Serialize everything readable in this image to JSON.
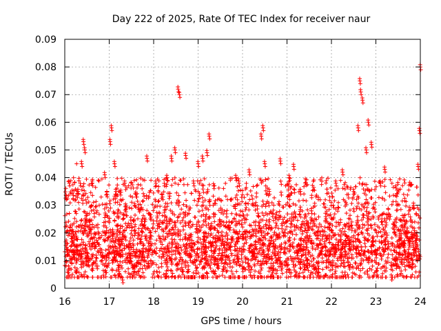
{
  "chart_data": {
    "type": "scatter",
    "title": "Day 222 of 2025, Rate Of TEC Index for receiver naur",
    "xlabel": "GPS time / hours",
    "ylabel": "ROTI / TECUs",
    "xlim": [
      16,
      24
    ],
    "ylim": [
      0,
      0.09
    ],
    "xticks": [
      16,
      17,
      18,
      19,
      20,
      21,
      22,
      23,
      24
    ],
    "xtick_labels": [
      "16",
      "17",
      "18",
      "19",
      "20",
      "21",
      "22",
      "23",
      "24"
    ],
    "yticks": [
      0,
      0.01,
      0.02,
      0.03,
      0.04,
      0.05,
      0.06,
      0.07,
      0.08,
      0.09
    ],
    "ytick_labels": [
      "0",
      "0.01",
      "0.02",
      "0.03",
      "0.04",
      "0.05",
      "0.06",
      "0.07",
      "0.08",
      "0.09"
    ],
    "grid": true,
    "marker": "plus",
    "color": "#ff0000",
    "series": [
      {
        "name": "ROTI",
        "x": [
          16.05,
          16.1,
          16.15,
          16.2,
          16.3,
          16.38,
          16.42,
          16.45,
          16.5,
          16.55,
          16.62,
          16.7,
          16.8,
          16.9,
          16.95,
          17.02,
          17.05,
          17.08,
          17.12,
          17.15,
          17.22,
          17.3,
          17.35,
          17.45,
          17.6,
          17.75,
          17.85,
          17.92,
          18.05,
          18.2,
          18.3,
          18.4,
          18.48,
          18.55,
          18.58,
          18.65,
          18.72,
          18.82,
          18.9,
          19.0,
          19.1,
          19.2,
          19.25,
          19.28,
          19.35,
          19.45,
          19.55,
          19.7,
          19.85,
          19.92,
          20.0,
          20.15,
          20.3,
          20.42,
          20.46,
          20.5,
          20.6,
          20.75,
          20.85,
          20.95,
          21.05,
          21.15,
          21.3,
          21.42,
          21.55,
          21.7,
          21.85,
          21.95,
          22.1,
          22.25,
          22.4,
          22.5,
          22.6,
          22.64,
          22.66,
          22.7,
          22.78,
          22.83,
          22.9,
          23.0,
          23.1,
          23.2,
          23.28,
          23.35,
          23.45,
          23.6,
          23.75,
          23.85,
          23.95,
          23.98,
          24.0
        ],
        "y": [
          0.014,
          0.038,
          0.018,
          0.012,
          0.035,
          0.045,
          0.053,
          0.05,
          0.011,
          0.016,
          0.038,
          0.009,
          0.013,
          0.041,
          0.034,
          0.053,
          0.058,
          0.018,
          0.045,
          0.035,
          0.006,
          0.003,
          0.038,
          0.012,
          0.034,
          0.011,
          0.047,
          0.02,
          0.038,
          0.033,
          0.04,
          0.047,
          0.05,
          0.072,
          0.07,
          0.006,
          0.048,
          0.011,
          0.038,
          0.045,
          0.047,
          0.049,
          0.055,
          0.016,
          0.037,
          0.009,
          0.012,
          0.022,
          0.04,
          0.038,
          0.007,
          0.042,
          0.015,
          0.055,
          0.058,
          0.045,
          0.035,
          0.011,
          0.046,
          0.014,
          0.04,
          0.044,
          0.035,
          0.012,
          0.028,
          0.008,
          0.016,
          0.013,
          0.038,
          0.042,
          0.015,
          0.035,
          0.058,
          0.075,
          0.071,
          0.068,
          0.05,
          0.06,
          0.052,
          0.012,
          0.038,
          0.043,
          0.016,
          0.004,
          0.009,
          0.022,
          0.017,
          0.03,
          0.044,
          0.057,
          0.08
        ]
      }
    ],
    "background_noise": {
      "description": "dense cluster of points",
      "typical_range": [
        0.005,
        0.025
      ],
      "center": 0.013
    }
  }
}
